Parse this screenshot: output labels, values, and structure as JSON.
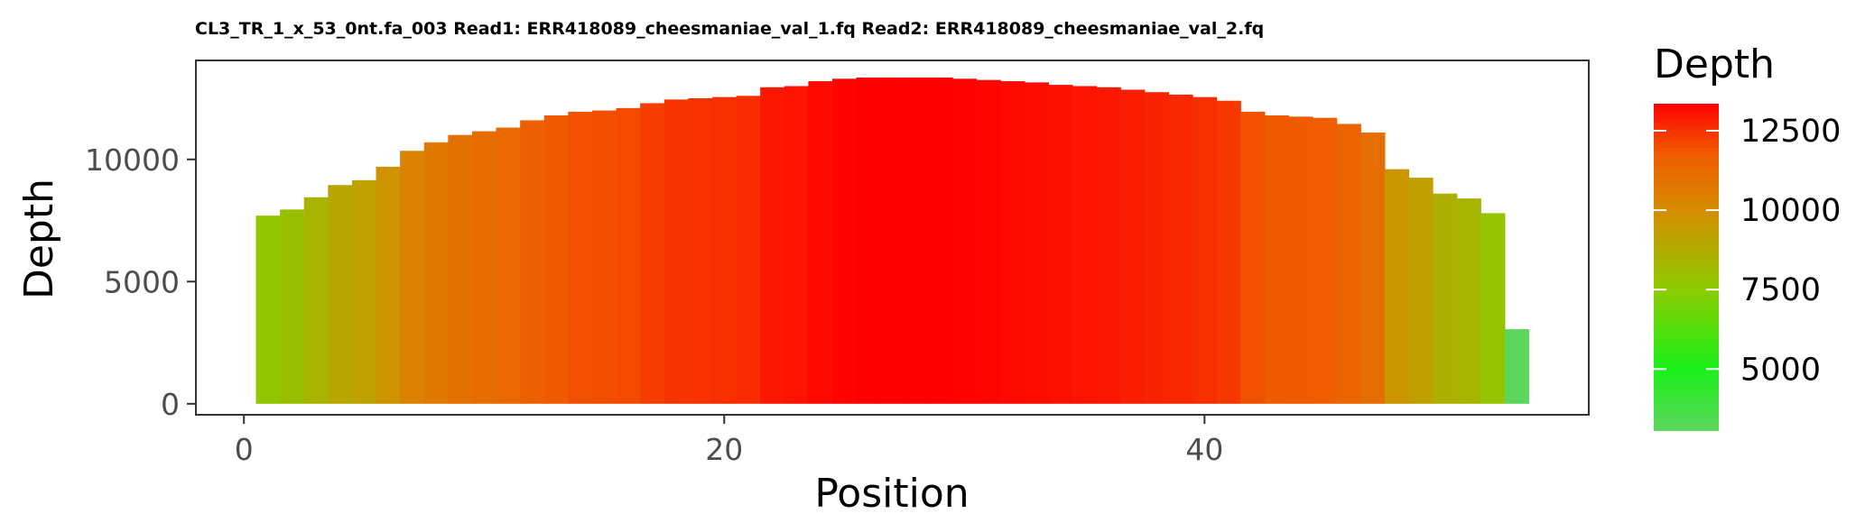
{
  "chart_data": {
    "type": "bar",
    "title": "CL3_TR_1_x_53_0nt.fa_003 Read1: ERR418089_cheesmaniae_val_1.fq Read2: ERR418089_cheesmaniae_val_2.fq",
    "xlabel": "Position",
    "ylabel": "Depth",
    "xlim": [
      -2,
      56
    ],
    "ylim": [
      -450,
      14050
    ],
    "x_ticks": [
      0,
      20,
      40
    ],
    "y_ticks": [
      0,
      5000,
      10000
    ],
    "grid": false,
    "x": [
      1,
      2,
      3,
      4,
      5,
      6,
      7,
      8,
      9,
      10,
      11,
      12,
      13,
      14,
      15,
      16,
      17,
      18,
      19,
      20,
      21,
      22,
      23,
      24,
      25,
      26,
      27,
      28,
      29,
      30,
      31,
      32,
      33,
      34,
      35,
      36,
      37,
      38,
      39,
      40,
      41,
      42,
      43,
      44,
      45,
      46,
      47,
      48,
      49,
      50,
      51,
      52,
      53,
      54
    ],
    "values": [
      7700,
      7950,
      8450,
      8950,
      9150,
      9700,
      10350,
      10700,
      11000,
      11150,
      11300,
      11600,
      11800,
      11950,
      12000,
      12100,
      12300,
      12450,
      12500,
      12550,
      12600,
      12950,
      13000,
      13200,
      13300,
      13350,
      13350,
      13350,
      13350,
      13300,
      13250,
      13200,
      13150,
      13050,
      13000,
      12950,
      12850,
      12750,
      12650,
      12550,
      12400,
      11950,
      11800,
      11750,
      11700,
      11450,
      11100,
      9600,
      9250,
      8600,
      8400,
      7800,
      3050,
      0
    ],
    "legend": {
      "title": "Depth",
      "position": "right",
      "range": [
        3050,
        13350
      ],
      "ticks": [
        "5000",
        "7500",
        "10000",
        "12500"
      ],
      "tick_values": [
        5000,
        7500,
        10000,
        12500
      ],
      "colors": {
        "low": "#5cd65c",
        "mid": "#00ff00",
        "high": "#ff0000"
      },
      "color_stops": [
        {
          "value": 3050,
          "color": "#5cd65c"
        },
        {
          "value": 5000,
          "color": "#1af01a"
        },
        {
          "value": 7500,
          "color": "#8ccc00"
        },
        {
          "value": 10000,
          "color": "#d68c00"
        },
        {
          "value": 11800,
          "color": "#f05a00"
        },
        {
          "value": 13350,
          "color": "#ff0000"
        }
      ]
    }
  }
}
